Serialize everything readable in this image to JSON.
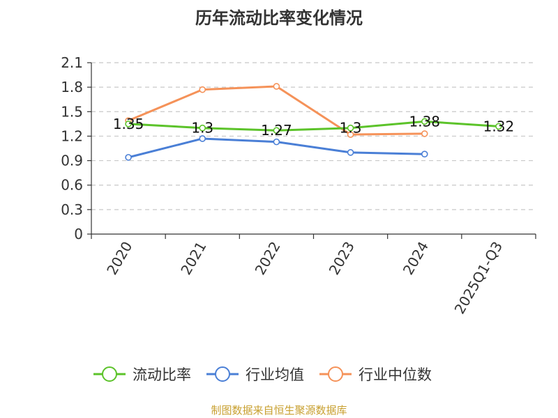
{
  "chart_data": {
    "type": "line",
    "title": "历年流动比率变化情况",
    "categories": [
      "2020",
      "2021",
      "2022",
      "2023",
      "2024",
      "2025Q1-Q3"
    ],
    "yticks": [
      "0",
      "0.3",
      "0.6",
      "0.9",
      "1.2",
      "1.5",
      "1.8",
      "2.1"
    ],
    "ylim": [
      0,
      2.1
    ],
    "grid": true,
    "legend_position": "bottom",
    "series": [
      {
        "name": "流动比率",
        "color": "#5cc32a",
        "values": [
          1.35,
          1.3,
          1.27,
          1.3,
          1.38,
          1.32
        ],
        "labels": [
          "1.35",
          "1.3",
          "1.27",
          "1.3",
          "1.38",
          "1.32"
        ]
      },
      {
        "name": "行业均值",
        "color": "#4a7fd6",
        "values": [
          0.94,
          1.17,
          1.13,
          1.0,
          0.98,
          null
        ]
      },
      {
        "name": "行业中位数",
        "color": "#f59259",
        "values": [
          1.39,
          1.77,
          1.81,
          1.22,
          1.23,
          null
        ]
      }
    ]
  },
  "source_text": "制图数据来自恒生聚源数据库",
  "source_color": "#c8a030"
}
